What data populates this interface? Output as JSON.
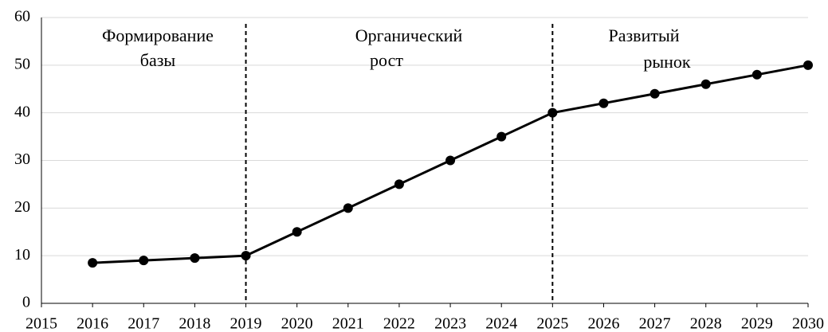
{
  "chart_data": {
    "type": "line",
    "x": [
      2016,
      2017,
      2018,
      2019,
      2020,
      2021,
      2022,
      2023,
      2024,
      2025,
      2026,
      2027,
      2028,
      2029,
      2030
    ],
    "series": [
      {
        "color": "#000000",
        "values": [
          8.5,
          9,
          9.5,
          10,
          15,
          20,
          25,
          30,
          35,
          40,
          42,
          44,
          46,
          48,
          50
        ]
      }
    ],
    "xlim": [
      2015,
      2030
    ],
    "xticks": [
      2015,
      2016,
      2017,
      2018,
      2019,
      2020,
      2021,
      2022,
      2023,
      2024,
      2025,
      2026,
      2027,
      2028,
      2029,
      2030
    ],
    "ylim": [
      0,
      60
    ],
    "yticks": [
      0,
      10,
      20,
      30,
      40,
      50,
      60
    ],
    "grid": true,
    "vlines": [
      2019,
      2025
    ],
    "annotations": [
      {
        "lines": [
          "Формирование",
          "базы"
        ]
      },
      {
        "lines": [
          "Органический",
          "рост"
        ]
      },
      {
        "lines": [
          "Развитый",
          "рынок"
        ]
      }
    ]
  }
}
